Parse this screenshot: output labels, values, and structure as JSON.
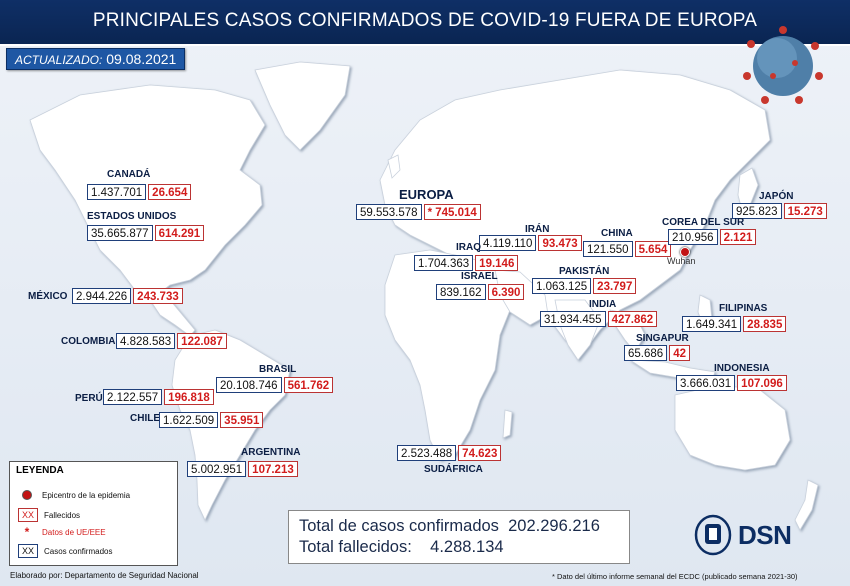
{
  "header": {
    "title": "PRINCIPALES CASOS CONFIRMADOS DE COVID-19 FUERA DE EUROPA",
    "updated_label": "ACTUALIZADO:",
    "updated_date": "09.08.2021"
  },
  "countries": [
    {
      "name": "CANADÁ",
      "confirmed": "1.437.701",
      "deaths": "26.654"
    },
    {
      "name": "ESTADOS UNIDOS",
      "confirmed": "35.665.877",
      "deaths": "614.291"
    },
    {
      "name": "MÉXICO",
      "confirmed": "2.944.226",
      "deaths": "243.733"
    },
    {
      "name": "COLOMBIA",
      "confirmed": "4.828.583",
      "deaths": "122.087"
    },
    {
      "name": "BRASIL",
      "confirmed": "20.108.746",
      "deaths": "561.762"
    },
    {
      "name": "PERÚ",
      "confirmed": "2.122.557",
      "deaths": "196.818"
    },
    {
      "name": "CHILE",
      "confirmed": "1.622.509",
      "deaths": "35.951"
    },
    {
      "name": "ARGENTINA",
      "confirmed": "5.002.951",
      "deaths": "107.213"
    },
    {
      "name": "EUROPA",
      "confirmed": "59.553.578",
      "deaths": "* 745.014"
    },
    {
      "name": "IRÁN",
      "confirmed": "4.119.110",
      "deaths": "93.473"
    },
    {
      "name": "IRAQ",
      "confirmed": "1.704.363",
      "deaths": "19.146"
    },
    {
      "name": "ISRAEL",
      "confirmed": "839.162",
      "deaths": "6.390"
    },
    {
      "name": "CHINA",
      "confirmed": "121.550",
      "deaths": "5.654"
    },
    {
      "name": "PAKISTÁN",
      "confirmed": "1.063.125",
      "deaths": "23.797"
    },
    {
      "name": "INDIA",
      "confirmed": "31.934.455",
      "deaths": "427.862"
    },
    {
      "name": "JAPÓN",
      "confirmed": "925.823",
      "deaths": "15.273"
    },
    {
      "name": "COREA DEL SUR",
      "confirmed": "210.956",
      "deaths": "2.121"
    },
    {
      "name": "FILIPINAS",
      "confirmed": "1.649.341",
      "deaths": "28.835"
    },
    {
      "name": "SINGAPUR",
      "confirmed": "65.686",
      "deaths": "42"
    },
    {
      "name": "INDONESIA",
      "confirmed": "3.666.031",
      "deaths": "107.096"
    },
    {
      "name": "SUDÁFRICA",
      "confirmed": "2.523.488",
      "deaths": "74.623"
    }
  ],
  "epicenter": {
    "label": "Wuhan"
  },
  "legend": {
    "title": "LEYENDA",
    "epicenter": "Epicentro de la epidemia",
    "deaths_swatch": "XX",
    "deaths": "Fallecidos",
    "eu_swatch": "*",
    "eu": "Datos de UE/EEE",
    "confirmed_swatch": "XX",
    "confirmed": "Casos confirmados"
  },
  "totals": {
    "confirmed_label": "Total de casos confirmados",
    "confirmed_value": "202.296.216",
    "deaths_label": "Total fallecidos:",
    "deaths_value": "4.288.134"
  },
  "footer": {
    "author": "Elaborado por: Departamento de Seguridad Nacional",
    "note": "* Dato del último informe semanal del ECDC (publicado semana 2021-30)"
  },
  "brand": {
    "logo_text": "DSN"
  },
  "colors": {
    "title_bg": "#0f2f66",
    "land": "#ffffff",
    "deaths": "#d21c1c",
    "accent": "#1e57a4"
  }
}
